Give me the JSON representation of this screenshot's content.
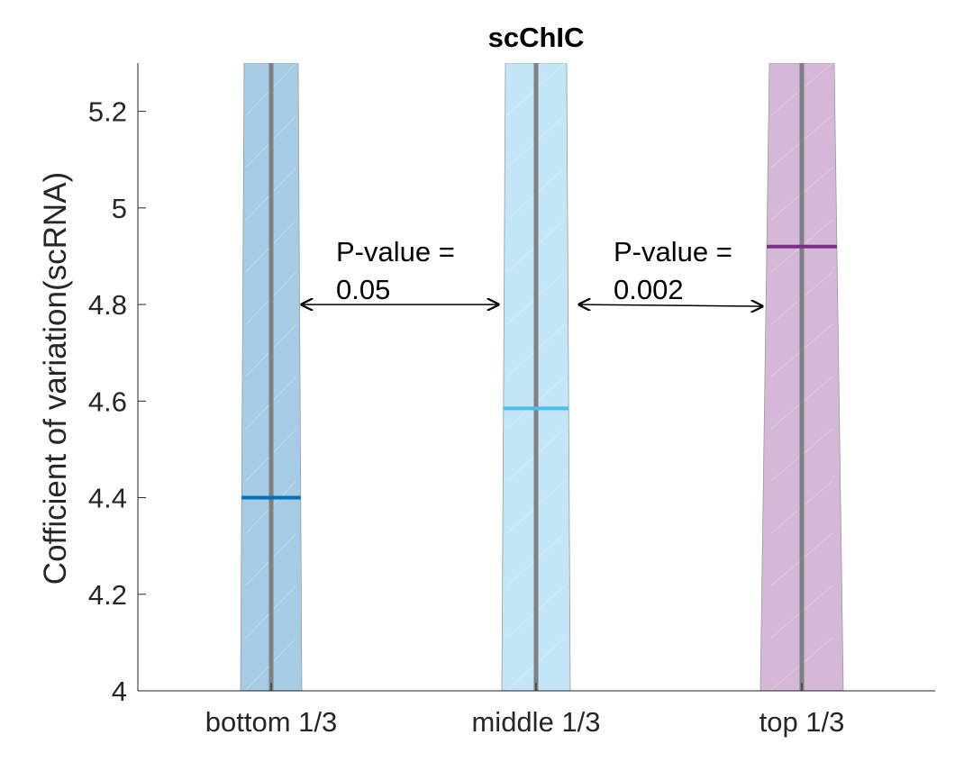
{
  "chart_data": {
    "type": "violin",
    "title": "scChIC",
    "xlabel": "",
    "ylabel": "Cofficient of variation(scRNA)",
    "ylim": [
      4,
      5.3
    ],
    "yticks": [
      4,
      4.2,
      4.4,
      4.6,
      4.8,
      5,
      5.2
    ],
    "ytick_labels": [
      "4",
      "4.2",
      "4.4",
      "4.6",
      "4.8",
      "5",
      "5.2"
    ],
    "categories": [
      "bottom 1/3",
      "middle 1/3",
      "top 1/3"
    ],
    "series": [
      {
        "category": "bottom 1/3",
        "median": 4.4,
        "color": "#0072BD",
        "fill": "#A6CBE5"
      },
      {
        "category": "middle 1/3",
        "median": 4.585,
        "color": "#4DBEEE",
        "fill": "#C2E5F7"
      },
      {
        "category": "top 1/3",
        "median": 4.92,
        "color": "#7E2F8E",
        "fill": "#D5B7D8"
      }
    ],
    "annotations": [
      {
        "text_line1": "P-value =",
        "text_line2": "0.05",
        "between": [
          "bottom 1/3",
          "middle 1/3"
        ],
        "y": 4.8
      },
      {
        "text_line1": "P-value =",
        "text_line2": "0.002",
        "between": [
          "middle 1/3",
          "top 1/3"
        ],
        "y": 4.8
      }
    ],
    "grid": false
  }
}
